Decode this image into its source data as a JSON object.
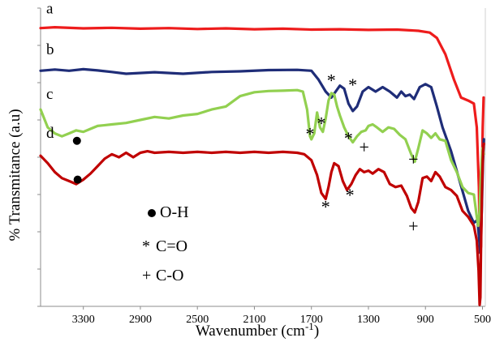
{
  "chart_data": {
    "type": "line",
    "title": "",
    "xlabel": "Wavenumber (cm-1)",
    "xlabel_main": "Wavenumber (cm",
    "xlabel_sup": "-1",
    "xlabel_end": ")",
    "ylabel": "% Transmitance (a.u)",
    "xlim": [
      3600,
      480
    ],
    "x_reversed": true,
    "ylim": [
      0,
      100
    ],
    "grid": false,
    "x_ticks": [
      3300,
      2900,
      2500,
      2100,
      1700,
      1300,
      900,
      500
    ],
    "y_minor_ticks": [
      0,
      12.5,
      25,
      37.5,
      50,
      62.5,
      75,
      87.5,
      100
    ],
    "series": [
      {
        "name": "a",
        "color": "#ee1c1c",
        "points": [
          [
            3600,
            93.3
          ],
          [
            3500,
            93.6
          ],
          [
            3300,
            93.2
          ],
          [
            3100,
            93.4
          ],
          [
            2900,
            93.1
          ],
          [
            2700,
            93.3
          ],
          [
            2500,
            93.0
          ],
          [
            2300,
            93.2
          ],
          [
            2100,
            92.9
          ],
          [
            1900,
            93.1
          ],
          [
            1700,
            92.8
          ],
          [
            1500,
            92.9
          ],
          [
            1300,
            92.7
          ],
          [
            1100,
            92.8
          ],
          [
            950,
            92.4
          ],
          [
            870,
            91.8
          ],
          [
            820,
            90.0
          ],
          [
            760,
            84.5
          ],
          [
            700,
            76.0
          ],
          [
            650,
            70.0
          ],
          [
            600,
            69.0
          ],
          [
            560,
            68.0
          ],
          [
            540,
            60.0
          ],
          [
            525,
            40.0
          ],
          [
            518,
            18.0
          ],
          [
            510,
            20.0
          ],
          [
            503,
            45.0
          ],
          [
            498,
            60.0
          ],
          [
            492,
            70.0
          ]
        ]
      },
      {
        "name": "b",
        "color": "#1f2d78",
        "points": [
          [
            3600,
            79.0
          ],
          [
            3500,
            79.4
          ],
          [
            3400,
            79.0
          ],
          [
            3300,
            79.5
          ],
          [
            3200,
            79.1
          ],
          [
            3100,
            78.6
          ],
          [
            3000,
            78.0
          ],
          [
            2800,
            78.5
          ],
          [
            2600,
            78.0
          ],
          [
            2400,
            78.6
          ],
          [
            2200,
            78.8
          ],
          [
            2000,
            79.2
          ],
          [
            1800,
            79.3
          ],
          [
            1700,
            79.0
          ],
          [
            1650,
            76.0
          ],
          [
            1600,
            72.0
          ],
          [
            1560,
            70.0
          ],
          [
            1530,
            72.0
          ],
          [
            1500,
            74.0
          ],
          [
            1470,
            73.0
          ],
          [
            1440,
            68.0
          ],
          [
            1410,
            65.5
          ],
          [
            1380,
            67.0
          ],
          [
            1340,
            72.0
          ],
          [
            1300,
            73.5
          ],
          [
            1250,
            72.0
          ],
          [
            1200,
            73.5
          ],
          [
            1150,
            72.0
          ],
          [
            1100,
            70.0
          ],
          [
            1070,
            72.0
          ],
          [
            1040,
            70.5
          ],
          [
            1010,
            71.0
          ],
          [
            980,
            69.5
          ],
          [
            940,
            73.5
          ],
          [
            900,
            74.5
          ],
          [
            860,
            73.5
          ],
          [
            820,
            67.0
          ],
          [
            780,
            60.0
          ],
          [
            720,
            52.0
          ],
          [
            660,
            42.0
          ],
          [
            600,
            32.0
          ],
          [
            560,
            28.0
          ],
          [
            535,
            29.0
          ],
          [
            515,
            18.0
          ],
          [
            505,
            32.0
          ],
          [
            497,
            48.0
          ],
          [
            490,
            56.0
          ]
        ]
      },
      {
        "name": "c",
        "color": "#92d050",
        "points": [
          [
            3600,
            66.0
          ],
          [
            3550,
            60.0
          ],
          [
            3500,
            58.0
          ],
          [
            3450,
            57.0
          ],
          [
            3400,
            58.0
          ],
          [
            3350,
            59.0
          ],
          [
            3300,
            58.5
          ],
          [
            3250,
            59.5
          ],
          [
            3200,
            60.5
          ],
          [
            3100,
            61.0
          ],
          [
            3000,
            61.5
          ],
          [
            2900,
            62.5
          ],
          [
            2800,
            63.5
          ],
          [
            2700,
            63.0
          ],
          [
            2600,
            64.0
          ],
          [
            2500,
            64.5
          ],
          [
            2400,
            66.0
          ],
          [
            2300,
            67.0
          ],
          [
            2200,
            70.5
          ],
          [
            2100,
            71.8
          ],
          [
            2000,
            72.2
          ],
          [
            1900,
            72.3
          ],
          [
            1800,
            72.5
          ],
          [
            1760,
            72.0
          ],
          [
            1730,
            66.0
          ],
          [
            1710,
            57.0
          ],
          [
            1700,
            56.0
          ],
          [
            1680,
            58.0
          ],
          [
            1660,
            65.0
          ],
          [
            1640,
            60.0
          ],
          [
            1620,
            58.5
          ],
          [
            1600,
            63.0
          ],
          [
            1580,
            69.0
          ],
          [
            1560,
            71.5
          ],
          [
            1540,
            71.0
          ],
          [
            1520,
            67.0
          ],
          [
            1500,
            64.0
          ],
          [
            1470,
            60.0
          ],
          [
            1440,
            57.0
          ],
          [
            1410,
            55.0
          ],
          [
            1380,
            57.0
          ],
          [
            1350,
            58.5
          ],
          [
            1320,
            59.0
          ],
          [
            1300,
            60.5
          ],
          [
            1270,
            61.0
          ],
          [
            1240,
            60.0
          ],
          [
            1200,
            58.5
          ],
          [
            1160,
            60.0
          ],
          [
            1120,
            59.5
          ],
          [
            1080,
            57.5
          ],
          [
            1040,
            56.0
          ],
          [
            1000,
            51.0
          ],
          [
            975,
            48.5
          ],
          [
            950,
            53.0
          ],
          [
            920,
            59.0
          ],
          [
            890,
            58.0
          ],
          [
            860,
            56.5
          ],
          [
            830,
            58.0
          ],
          [
            800,
            56.0
          ],
          [
            760,
            55.5
          ],
          [
            720,
            49.0
          ],
          [
            680,
            45.0
          ],
          [
            640,
            40.0
          ],
          [
            600,
            38.0
          ],
          [
            560,
            37.5
          ],
          [
            540,
            30.0
          ],
          [
            530,
            27.0
          ],
          [
            520,
            32.0
          ],
          [
            510,
            45.0
          ],
          [
            500,
            53.0
          ],
          [
            492,
            51.0
          ]
        ]
      },
      {
        "name": "d",
        "color": "#c00000",
        "points": [
          [
            3600,
            50.5
          ],
          [
            3550,
            48.0
          ],
          [
            3500,
            45.0
          ],
          [
            3450,
            43.0
          ],
          [
            3400,
            42.0
          ],
          [
            3350,
            41.0
          ],
          [
            3300,
            42.5
          ],
          [
            3250,
            44.5
          ],
          [
            3200,
            47.0
          ],
          [
            3150,
            49.5
          ],
          [
            3100,
            51.0
          ],
          [
            3050,
            50.0
          ],
          [
            3000,
            51.5
          ],
          [
            2950,
            50.0
          ],
          [
            2900,
            51.5
          ],
          [
            2850,
            52.0
          ],
          [
            2800,
            51.5
          ],
          [
            2700,
            51.8
          ],
          [
            2600,
            51.5
          ],
          [
            2500,
            51.8
          ],
          [
            2400,
            51.5
          ],
          [
            2300,
            51.8
          ],
          [
            2200,
            51.5
          ],
          [
            2100,
            51.8
          ],
          [
            2000,
            51.5
          ],
          [
            1900,
            51.8
          ],
          [
            1800,
            51.5
          ],
          [
            1750,
            51.0
          ],
          [
            1700,
            49.0
          ],
          [
            1660,
            44.0
          ],
          [
            1630,
            38.0
          ],
          [
            1600,
            36.0
          ],
          [
            1580,
            40.0
          ],
          [
            1560,
            45.0
          ],
          [
            1540,
            48.0
          ],
          [
            1510,
            47.0
          ],
          [
            1480,
            42.0
          ],
          [
            1450,
            39.0
          ],
          [
            1420,
            41.0
          ],
          [
            1390,
            44.0
          ],
          [
            1360,
            46.0
          ],
          [
            1330,
            45.0
          ],
          [
            1300,
            45.5
          ],
          [
            1270,
            44.5
          ],
          [
            1230,
            46.0
          ],
          [
            1190,
            45.0
          ],
          [
            1150,
            41.0
          ],
          [
            1110,
            40.0
          ],
          [
            1070,
            40.5
          ],
          [
            1030,
            37.0
          ],
          [
            1000,
            33.0
          ],
          [
            975,
            31.5
          ],
          [
            950,
            35.0
          ],
          [
            920,
            43.0
          ],
          [
            890,
            43.5
          ],
          [
            860,
            42.0
          ],
          [
            830,
            45.0
          ],
          [
            800,
            43.5
          ],
          [
            760,
            40.0
          ],
          [
            720,
            39.0
          ],
          [
            680,
            37.0
          ],
          [
            640,
            32.0
          ],
          [
            600,
            30.0
          ],
          [
            560,
            27.0
          ],
          [
            540,
            22.0
          ],
          [
            527,
            12.0
          ],
          [
            520,
            0.5
          ],
          [
            515,
            3.0
          ],
          [
            510,
            20.0
          ],
          [
            503,
            40.0
          ],
          [
            496,
            52.0
          ],
          [
            490,
            54.5
          ]
        ]
      }
    ],
    "trace_labels": [
      {
        "text": "a",
        "series": "a",
        "x": 3560,
        "y": 98.2
      },
      {
        "text": "b",
        "series": "b",
        "x": 3560,
        "y": 84.5
      },
      {
        "text": "c",
        "series": "c",
        "x": 3560,
        "y": 69.5
      },
      {
        "text": "d",
        "series": "d",
        "x": 3560,
        "y": 56.5
      }
    ],
    "markers": [
      {
        "type": "dot",
        "x": 3345,
        "y": 55.5
      },
      {
        "type": "dot",
        "x": 3340,
        "y": 42.5
      },
      {
        "type": "star",
        "x": 1560,
        "y": 76.0
      },
      {
        "type": "star",
        "x": 1410,
        "y": 74.5
      },
      {
        "type": "star",
        "x": 1710,
        "y": 58.0
      },
      {
        "type": "star",
        "x": 1630,
        "y": 61.5
      },
      {
        "type": "star",
        "x": 1440,
        "y": 56.5
      },
      {
        "type": "plus",
        "x": 1330,
        "y": 53.5
      },
      {
        "type": "plus",
        "x": 985,
        "y": 49.5
      },
      {
        "type": "star",
        "x": 1600,
        "y": 33.5
      },
      {
        "type": "star",
        "x": 1430,
        "y": 37.5
      },
      {
        "type": "plus",
        "x": 985,
        "y": 27.0
      }
    ],
    "legend": {
      "placement": "bottom-left inside plot",
      "items": [
        {
          "symbol": "dot",
          "label": "O-H"
        },
        {
          "symbol": "star",
          "symbol_text": "*",
          "label": "C=O"
        },
        {
          "symbol": "plus",
          "symbol_text": "+",
          "label": "C-O"
        }
      ]
    }
  }
}
